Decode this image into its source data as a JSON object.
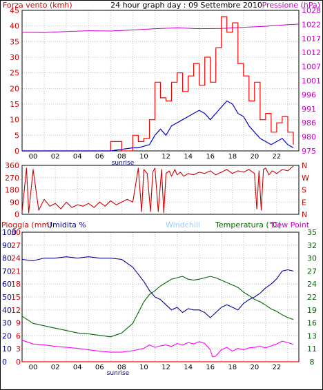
{
  "colors": {
    "wind": "#cc0000",
    "gust": "#ff0000",
    "wind_avg": "#0000cc",
    "pressure": "#cc00cc",
    "direction": "#cc0000",
    "humidity": "#000099",
    "temperature": "#006600",
    "dewpoint": "#ff00ff",
    "rain": "#ff0000",
    "windchill": "#99ccff",
    "grid": "#bfbfbf"
  },
  "chart_data": [
    {
      "type": "line",
      "title": "24 hour graph day : 09 Settembre 2010",
      "ylabel": "Forza vento (kmh)",
      "y2label": "Pressione (hPa)",
      "ylim": [
        0,
        45
      ],
      "y2lim": [
        975,
        1028
      ],
      "yticks": [
        "0",
        "5",
        "10",
        "15",
        "20",
        "25",
        "30",
        "35",
        "40",
        "45"
      ],
      "y2ticks": [
        "975",
        "980",
        "986",
        "991",
        "996",
        "1001",
        "1007",
        "1012",
        "1017",
        "1022",
        "1028"
      ],
      "xticks": [
        "00",
        "02",
        "04",
        "06",
        "08",
        "10",
        "12",
        "14",
        "16",
        "18",
        "20",
        "22"
      ],
      "xlim": [
        -1,
        24
      ],
      "annotations": [
        "sunrise"
      ],
      "series": [
        {
          "role": "gust",
          "x": [
            -1,
            6.5,
            7,
            8,
            9,
            9.5,
            10,
            10.5,
            11,
            11.5,
            12,
            12.5,
            13,
            13.5,
            14,
            14.5,
            15,
            15.5,
            16,
            16.5,
            17,
            17.5,
            18,
            18.5,
            19,
            19.5,
            20,
            20.5,
            21,
            21.5,
            22,
            22.5,
            23,
            23.5
          ],
          "y": [
            0,
            0,
            3,
            0,
            5,
            3,
            4,
            10,
            22,
            17,
            16,
            22,
            25,
            19,
            24,
            28,
            21,
            30,
            22,
            33,
            43,
            38,
            41,
            28,
            24,
            16,
            22,
            10,
            12,
            6,
            9,
            11,
            6,
            2
          ]
        },
        {
          "role": "wind_avg",
          "x": [
            -1,
            7,
            8,
            9,
            9.5,
            10,
            10.5,
            11,
            11.5,
            12,
            12.5,
            13,
            13.5,
            14,
            14.5,
            15,
            15.5,
            16,
            16.5,
            17,
            17.5,
            18,
            18.5,
            19,
            19.5,
            20,
            20.5,
            21,
            21.5,
            22,
            22.5,
            23,
            23.5
          ],
          "y": [
            0,
            0,
            0.5,
            1,
            1,
            1.5,
            2,
            5,
            7,
            5,
            8,
            9,
            10,
            11,
            12,
            13,
            12,
            10,
            12,
            14,
            16,
            15,
            12,
            11,
            8,
            6,
            4,
            3,
            2,
            3,
            4,
            2,
            1
          ]
        },
        {
          "role": "pressure",
          "x": [
            -1,
            1,
            3,
            5,
            7,
            9,
            11,
            13,
            15,
            17,
            19,
            21,
            23,
            24
          ],
          "y": [
            1019.7,
            1019.6,
            1020.0,
            1020.3,
            1020.2,
            1020.6,
            1021.1,
            1021.4,
            1021.1,
            1021.2,
            1021.6,
            1022.0,
            1022.6,
            1022.8
          ]
        }
      ]
    },
    {
      "type": "line",
      "ylabel": "",
      "y2label": "",
      "ylim": [
        0,
        360
      ],
      "yticks": [
        "0",
        "90",
        "180",
        "270",
        "360"
      ],
      "y2ticks": [
        "N",
        "E",
        "S",
        "W",
        "N"
      ],
      "xlim": [
        -1,
        24
      ],
      "series": [
        {
          "role": "direction",
          "x": [
            -1,
            -0.6,
            -0.4,
            0,
            0.5,
            1,
            1.5,
            2,
            2.5,
            3,
            3.5,
            4,
            4.5,
            5,
            5.5,
            6,
            6.5,
            7,
            7.5,
            8,
            8.5,
            9,
            9.5,
            9.8,
            10,
            10.3,
            10.6,
            10.8,
            11,
            11.3,
            11.6,
            11.8,
            12,
            12.3,
            12.5,
            12.8,
            13,
            13.3,
            13.6,
            14,
            14.5,
            15,
            15.5,
            16,
            16.5,
            17,
            17.5,
            18,
            18.5,
            19,
            19.5,
            20,
            20.2,
            20.4,
            20.6,
            20.8,
            21,
            21.3,
            21.6,
            22,
            22.5,
            23,
            23.5
          ],
          "y": [
            20,
            340,
            10,
            330,
            30,
            110,
            60,
            80,
            40,
            90,
            50,
            70,
            60,
            80,
            50,
            90,
            60,
            100,
            70,
            90,
            110,
            90,
            340,
            20,
            330,
            300,
            20,
            310,
            340,
            20,
            330,
            10,
            300,
            320,
            280,
            330,
            290,
            310,
            280,
            300,
            290,
            310,
            300,
            320,
            290,
            310,
            330,
            300,
            320,
            310,
            330,
            300,
            40,
            320,
            30,
            330,
            340,
            290,
            320,
            300,
            330,
            320,
            355
          ]
        }
      ]
    },
    {
      "type": "line",
      "ylabel": "Pioggia (mm)",
      "ylabel2": "Umidita %",
      "legend": [
        "Windchill",
        "Temperatura (°C)",
        "Dew Point"
      ],
      "rain_ticks": [
        "0",
        "3",
        "6",
        "9",
        "12",
        "15",
        "18",
        "21",
        "24",
        "27",
        "30"
      ],
      "humidity_ticks": [
        "0",
        "10",
        "20",
        "30",
        "40",
        "50",
        "60",
        "70",
        "80",
        "90",
        "100"
      ],
      "temperature_ticks": [
        "8",
        "11",
        "13",
        "16",
        "19",
        "22",
        "24",
        "27",
        "30",
        "32",
        "35"
      ],
      "rain_lim": [
        0,
        30
      ],
      "humidity_lim": [
        0,
        100
      ],
      "temperature_lim": [
        8,
        35
      ],
      "xticks": [
        "00",
        "02",
        "04",
        "06",
        "08",
        "10",
        "12",
        "14",
        "16",
        "18",
        "20",
        "22"
      ],
      "xlim": [
        -1,
        24
      ],
      "annotations": [
        "sunrise"
      ],
      "series": [
        {
          "role": "humidity",
          "x": [
            -1,
            0,
            1,
            2,
            3,
            4,
            5,
            6,
            7,
            8,
            9,
            10,
            10.5,
            11,
            11.5,
            12,
            12.5,
            13,
            13.5,
            14,
            14.5,
            15,
            15.5,
            16,
            16.5,
            17,
            17.5,
            18,
            18.5,
            19,
            19.5,
            20,
            20.5,
            21,
            21.5,
            22,
            22.5,
            23,
            23.5
          ],
          "y": [
            79,
            78,
            80,
            80,
            81,
            80,
            81,
            80,
            80,
            79,
            73,
            62,
            55,
            50,
            48,
            44,
            40,
            42,
            38,
            41,
            40,
            40,
            38,
            34,
            38,
            42,
            44,
            42,
            40,
            45,
            48,
            50,
            53,
            57,
            60,
            64,
            70,
            71,
            70
          ]
        },
        {
          "role": "temperature",
          "x": [
            -1,
            0,
            1,
            2,
            3,
            4,
            5,
            6,
            7,
            8,
            9,
            10,
            10.5,
            11,
            11.5,
            12,
            12.5,
            13,
            13.5,
            14,
            14.5,
            15,
            15.5,
            16,
            16.5,
            17,
            17.5,
            18,
            18.5,
            19,
            19.5,
            20,
            20.5,
            21,
            21.5,
            22,
            22.5,
            23,
            23.5
          ],
          "y": [
            17.5,
            16,
            15.5,
            15,
            14.5,
            14,
            13.8,
            13.5,
            13.2,
            14,
            16,
            20.5,
            22,
            22.8,
            23.8,
            24.5,
            25.2,
            25.5,
            25.8,
            25.2,
            25,
            25.2,
            25.5,
            25.8,
            25.5,
            25,
            24.5,
            24,
            23.5,
            22.5,
            21.8,
            21,
            20.5,
            19.8,
            19,
            18.5,
            17.8,
            17.2,
            16.8
          ]
        },
        {
          "role": "dewpoint",
          "x": [
            -1,
            0,
            1,
            2,
            3,
            4,
            5,
            6,
            7,
            8,
            9,
            10,
            10.5,
            11,
            11.5,
            12,
            12.5,
            13,
            13.5,
            14,
            14.5,
            15,
            15.5,
            16,
            16.2,
            16.5,
            17,
            17.5,
            18,
            18.5,
            19,
            19.5,
            20,
            20.5,
            21,
            21.5,
            22,
            22.5,
            23,
            23.5
          ],
          "y": [
            12.5,
            11.7,
            11.5,
            11.2,
            11,
            10.8,
            10.5,
            10.2,
            10,
            10,
            10.3,
            10.8,
            11.5,
            11,
            11.3,
            11.5,
            11.2,
            11.8,
            11.5,
            12,
            11.7,
            12.2,
            11.8,
            10.5,
            9,
            9.2,
            10.5,
            11,
            10.2,
            10.8,
            10.5,
            10.9,
            11,
            11.2,
            10.9,
            11.3,
            11.7,
            12.3,
            12,
            11.6
          ]
        },
        {
          "role": "rain",
          "x": [
            -1,
            24
          ],
          "y": [
            0,
            0
          ]
        }
      ]
    }
  ]
}
